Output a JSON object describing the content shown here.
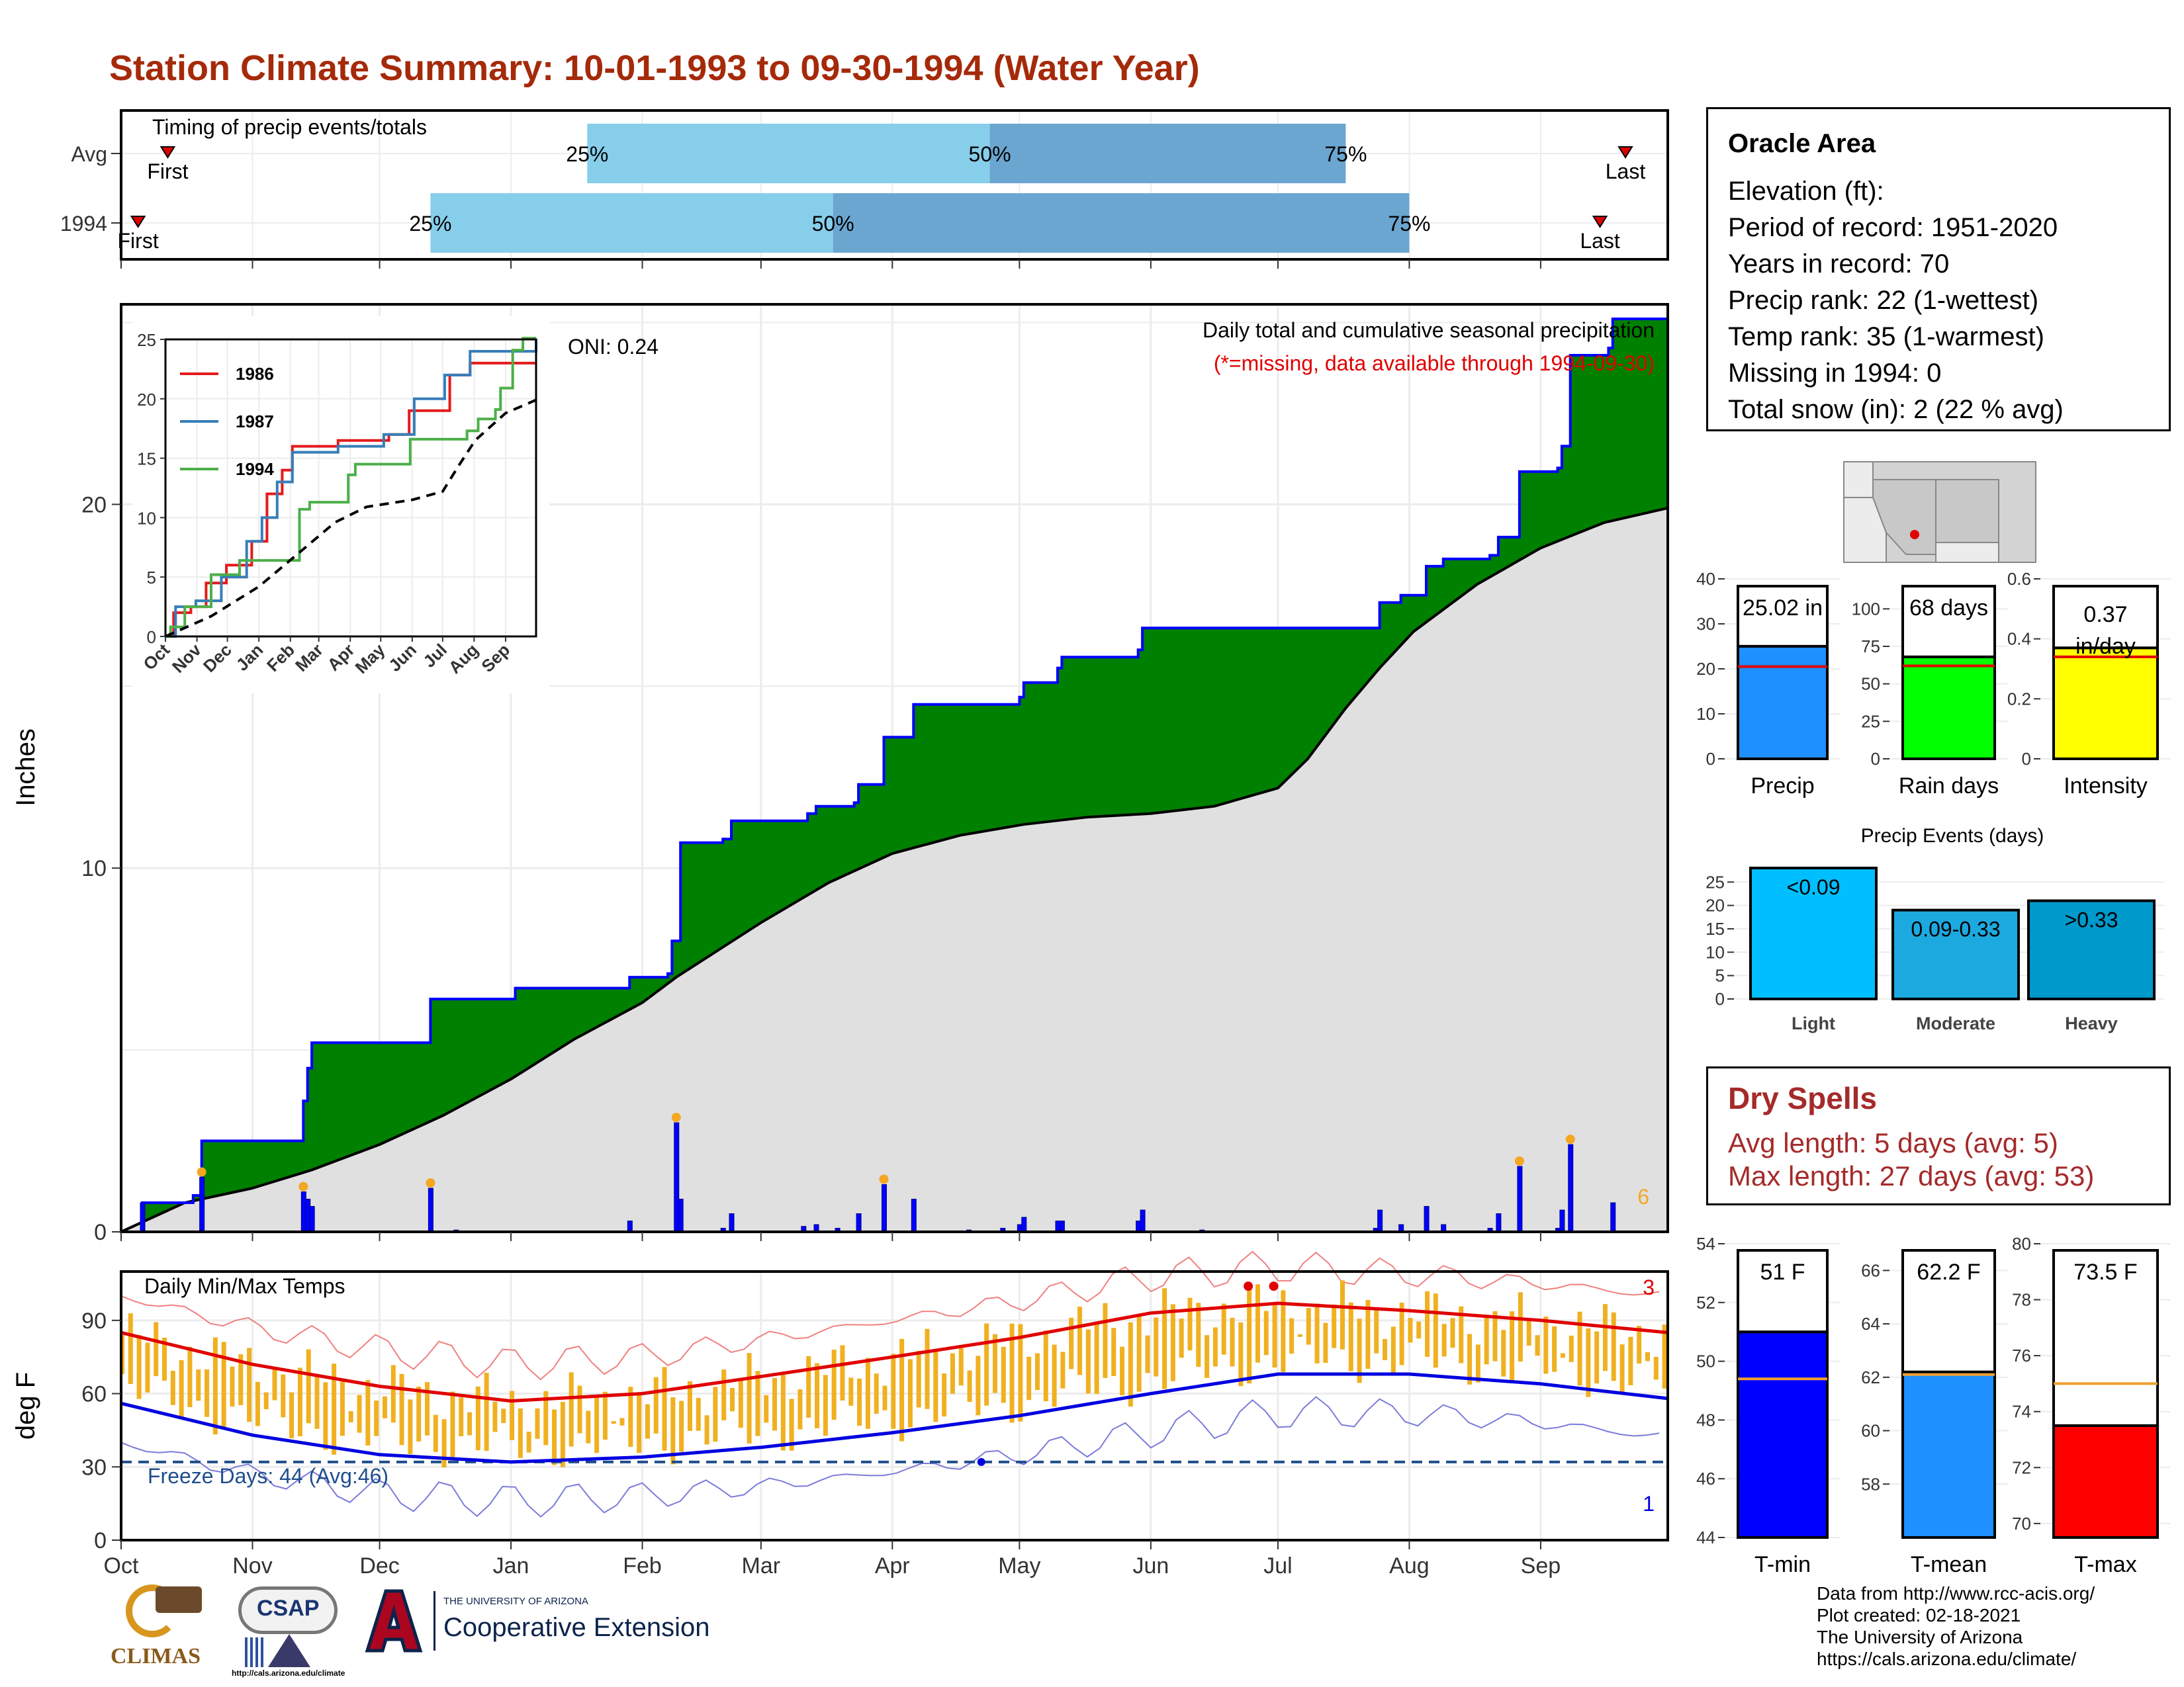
{
  "title": "Station Climate Summary: 10-01-1993 to 09-30-1994 (Water Year)",
  "timing_panel": {
    "label": "Timing of precip events/totals",
    "rows": [
      {
        "name": "Avg",
        "first_label": "First",
        "last_label": "Last",
        "first_day": 11,
        "last_day": 355,
        "p25_day": 110,
        "p50_day": 205,
        "p75_day": 289
      },
      {
        "name": "1994",
        "first_label": "First",
        "last_label": "Last",
        "first_day": 4,
        "last_day": 349,
        "p25_day": 73,
        "p50_day": 168,
        "p75_day": 304
      }
    ],
    "percent_labels": [
      "25%",
      "50%",
      "75%"
    ]
  },
  "main_panel": {
    "ylabel": "Inches",
    "y_ticks": [
      0,
      10,
      20
    ],
    "ylim": [
      0,
      25.5
    ],
    "label_top": "Daily total and cumulative seasonal precipitation",
    "label_missing": "(*=missing, data available through 1994-09-30)",
    "oni": "ONI: 0.24",
    "corner_count": "6"
  },
  "chart_data": [
    {
      "type": "area",
      "title": "Daily total and cumulative seasonal precipitation",
      "ylabel": "Inches",
      "ylim": [
        0,
        25.5
      ],
      "x_unit": "day of water year",
      "series": [
        {
          "name": "1994",
          "points": [
            [
              0,
              0
            ],
            [
              4,
              0
            ],
            [
              5,
              0.8
            ],
            [
              16,
              0.8
            ],
            [
              17,
              1.0
            ],
            [
              18,
              1.0
            ],
            [
              19,
              2.5
            ],
            [
              42,
              2.5
            ],
            [
              43,
              3.6
            ],
            [
              44,
              4.5
            ],
            [
              45,
              5.2
            ],
            [
              72,
              5.2
            ],
            [
              73,
              6.4
            ],
            [
              92,
              6.4
            ],
            [
              93,
              6.7
            ],
            [
              119,
              6.7
            ],
            [
              120,
              7.0
            ],
            [
              129,
              7.1
            ],
            [
              130,
              8.0
            ],
            [
              132,
              10.7
            ],
            [
              142,
              10.8
            ],
            [
              144,
              11.3
            ],
            [
              161,
              11.3
            ],
            [
              162,
              11.5
            ],
            [
              164,
              11.7
            ],
            [
              173,
              11.8
            ],
            [
              174,
              12.3
            ],
            [
              180,
              13.6
            ],
            [
              187,
              14.5
            ],
            [
              212,
              14.7
            ],
            [
              213,
              15.1
            ],
            [
              221,
              15.5
            ],
            [
              222,
              15.8
            ],
            [
              240,
              16.0
            ],
            [
              241,
              16.6
            ],
            [
              255,
              16.6
            ],
            [
              256,
              16.6
            ],
            [
              296,
              16.6
            ],
            [
              297,
              17.3
            ],
            [
              302,
              17.5
            ],
            [
              307,
              17.5
            ],
            [
              308,
              18.3
            ],
            [
              312,
              18.5
            ],
            [
              323,
              18.6
            ],
            [
              325,
              19.1
            ],
            [
              330,
              20.9
            ],
            [
              339,
              21.0
            ],
            [
              340,
              21.6
            ],
            [
              342,
              24.1
            ],
            [
              351,
              24.3
            ],
            [
              352,
              25.1
            ],
            [
              365,
              25.1
            ]
          ]
        },
        {
          "name": "Average cumulative",
          "points": [
            [
              0,
              0
            ],
            [
              15,
              0.8
            ],
            [
              31,
              1.2
            ],
            [
              45,
              1.7
            ],
            [
              61,
              2.4
            ],
            [
              76,
              3.2
            ],
            [
              92,
              4.2
            ],
            [
              107,
              5.3
            ],
            [
              123,
              6.3
            ],
            [
              131,
              7.0
            ],
            [
              151,
              8.5
            ],
            [
              167,
              9.6
            ],
            [
              182,
              10.4
            ],
            [
              198,
              10.9
            ],
            [
              213,
              11.2
            ],
            [
              228,
              11.4
            ],
            [
              243,
              11.5
            ],
            [
              258,
              11.7
            ],
            [
              273,
              12.2
            ],
            [
              280,
              13.0
            ],
            [
              289,
              14.4
            ],
            [
              297,
              15.5
            ],
            [
              305,
              16.5
            ],
            [
              320,
              17.8
            ],
            [
              335,
              18.8
            ],
            [
              350,
              19.5
            ],
            [
              365,
              19.9
            ]
          ]
        },
        {
          "name": "Daily precip",
          "points": [
            [
              5,
              0.8
            ],
            [
              19,
              1.5
            ],
            [
              43,
              1.1
            ],
            [
              44,
              0.9
            ],
            [
              45,
              0.7
            ],
            [
              73,
              1.2
            ],
            [
              79,
              0.05
            ],
            [
              120,
              0.3
            ],
            [
              131,
              3.0
            ],
            [
              132,
              0.9
            ],
            [
              142,
              0.1
            ],
            [
              144,
              0.5
            ],
            [
              161,
              0.15
            ],
            [
              164,
              0.2
            ],
            [
              169,
              0.1
            ],
            [
              174,
              0.5
            ],
            [
              180,
              1.3
            ],
            [
              187,
              0.9
            ],
            [
              200,
              0.05
            ],
            [
              208,
              0.1
            ],
            [
              212,
              0.2
            ],
            [
              213,
              0.4
            ],
            [
              221,
              0.3
            ],
            [
              222,
              0.3
            ],
            [
              240,
              0.3
            ],
            [
              241,
              0.6
            ],
            [
              255,
              0.05
            ],
            [
              296,
              0.1
            ],
            [
              297,
              0.6
            ],
            [
              302,
              0.2
            ],
            [
              308,
              0.7
            ],
            [
              312,
              0.2
            ],
            [
              323,
              0.1
            ],
            [
              325,
              0.5
            ],
            [
              330,
              1.8
            ],
            [
              339,
              0.1
            ],
            [
              340,
              0.6
            ],
            [
              342,
              2.4
            ],
            [
              352,
              0.8
            ]
          ]
        }
      ],
      "x_tick_labels": [
        "Oct",
        "Nov",
        "Dec",
        "Jan",
        "Feb",
        "Mar",
        "Apr",
        "May",
        "Jun",
        "Jul",
        "Aug",
        "Sep"
      ],
      "grid": true
    },
    {
      "type": "line",
      "title": "",
      "x_tick_labels": [
        "Oct",
        "Nov",
        "Dec",
        "Jan",
        "Feb",
        "Mar",
        "Apr",
        "May",
        "Jun",
        "Jul",
        "Aug",
        "Sep"
      ],
      "x_tick_days": [
        0,
        31,
        61,
        92,
        123,
        151,
        182,
        212,
        243,
        273,
        304,
        335
      ],
      "y_ticks": [
        0,
        5,
        10,
        15,
        20,
        25
      ],
      "ylim": [
        0,
        25
      ],
      "series": [
        {
          "name": "1986",
          "color": "#e41a1c",
          "points": [
            [
              0,
              0
            ],
            [
              8,
              2
            ],
            [
              25,
              2.5
            ],
            [
              40,
              4.5
            ],
            [
              60,
              6
            ],
            [
              85,
              8
            ],
            [
              100,
              12
            ],
            [
              115,
              14
            ],
            [
              125,
              16
            ],
            [
              170,
              16.5
            ],
            [
              220,
              17
            ],
            [
              240,
              19
            ],
            [
              280,
              22
            ],
            [
              300,
              23
            ],
            [
              365,
              23
            ]
          ]
        },
        {
          "name": "1987",
          "color": "#377eb8",
          "points": [
            [
              0,
              0
            ],
            [
              10,
              2.5
            ],
            [
              30,
              3
            ],
            [
              55,
              5
            ],
            [
              80,
              8
            ],
            [
              95,
              10
            ],
            [
              110,
              13
            ],
            [
              125,
              15.5
            ],
            [
              170,
              16
            ],
            [
              215,
              17
            ],
            [
              245,
              20
            ],
            [
              275,
              22
            ],
            [
              300,
              24
            ],
            [
              365,
              25
            ]
          ]
        },
        {
          "name": "1994",
          "color": "#4daf4a",
          "points": [
            [
              0,
              0
            ],
            [
              5,
              0.8
            ],
            [
              19,
              2.5
            ],
            [
              45,
              5.2
            ],
            [
              73,
              6.4
            ],
            [
              132,
              10.7
            ],
            [
              142,
              11.3
            ],
            [
              180,
              13.6
            ],
            [
              187,
              14.5
            ],
            [
              241,
              16.6
            ],
            [
              296,
              16.6
            ],
            [
              297,
              17.3
            ],
            [
              308,
              18.3
            ],
            [
              325,
              19.1
            ],
            [
              330,
              20.9
            ],
            [
              342,
              24.1
            ],
            [
              352,
              25.1
            ],
            [
              365,
              25.1
            ]
          ]
        },
        {
          "name": "avg",
          "color": "#000000",
          "points": [
            [
              0,
              0
            ],
            [
              45,
              1.7
            ],
            [
              92,
              4.2
            ],
            [
              131,
              7.0
            ],
            [
              167,
              9.6
            ],
            [
              198,
              10.9
            ],
            [
              243,
              11.5
            ],
            [
              273,
              12.2
            ],
            [
              289,
              14.4
            ],
            [
              305,
              16.5
            ],
            [
              335,
              18.8
            ],
            [
              365,
              19.9
            ]
          ]
        }
      ]
    },
    {
      "type": "bar",
      "title": "",
      "categories": [
        "Precip",
        "Rain days",
        "Intensity"
      ],
      "values": [
        25.02,
        68,
        0.37
      ],
      "avg": [
        20.5,
        62,
        0.34
      ],
      "labels": [
        "25.02 in",
        "68 days",
        "0.37 in/day"
      ],
      "ylims": [
        [
          0,
          40
        ],
        [
          0,
          120
        ],
        [
          0,
          0.6
        ]
      ],
      "colors": [
        "#1e90ff",
        "#00ff00",
        "#ffff00"
      ]
    },
    {
      "type": "bar",
      "title": "Precip Events (days)",
      "categories": [
        "Light",
        "Moderate",
        "Heavy"
      ],
      "values": [
        28,
        19,
        21
      ],
      "bar_labels": [
        "<0.09",
        "0.09-0.33",
        ">0.33"
      ],
      "ylim": [
        0,
        29
      ],
      "colors": [
        "#00bfff",
        "#1ca9e0",
        "#0099cc"
      ]
    },
    {
      "type": "line",
      "title": "Daily Min/Max Temps",
      "ylabel": "deg F",
      "ylim": [
        0,
        110
      ],
      "y_ticks": [
        0,
        30,
        60,
        90
      ],
      "freeze_label": "Freeze Days: 44 (Avg:46)",
      "corner_top": "3",
      "corner_bottom": "1",
      "x_tick_labels": [
        "Oct",
        "Nov",
        "Dec",
        "Jan",
        "Feb",
        "Mar",
        "Apr",
        "May",
        "Jun",
        "Jul",
        "Aug",
        "Sep"
      ],
      "avg_max_points": [
        [
          0,
          88
        ],
        [
          31,
          75
        ],
        [
          61,
          66
        ],
        [
          92,
          60
        ],
        [
          123,
          63
        ],
        [
          151,
          70
        ],
        [
          182,
          78
        ],
        [
          212,
          86
        ],
        [
          243,
          96
        ],
        [
          273,
          100
        ],
        [
          304,
          97
        ],
        [
          335,
          93
        ],
        [
          365,
          88
        ]
      ],
      "avg_min_points": [
        [
          0,
          56
        ],
        [
          31,
          43
        ],
        [
          61,
          35
        ],
        [
          92,
          32
        ],
        [
          123,
          34
        ],
        [
          151,
          38
        ],
        [
          182,
          44
        ],
        [
          212,
          51
        ],
        [
          243,
          60
        ],
        [
          273,
          68
        ],
        [
          304,
          68
        ],
        [
          335,
          64
        ],
        [
          365,
          58
        ]
      ]
    },
    {
      "type": "bar",
      "title": "",
      "categories": [
        "T-min",
        "T-mean",
        "T-max"
      ],
      "values": [
        51,
        62.2,
        73.5
      ],
      "avg": [
        49.4,
        62.1,
        75.0
      ],
      "labels": [
        "51 F",
        "62.2 F",
        "73.5 F"
      ],
      "ylims": [
        [
          44,
          54
        ],
        [
          56,
          67
        ],
        [
          69.5,
          80
        ]
      ],
      "y_ticks": [
        [
          44,
          46,
          48,
          50,
          52,
          54
        ],
        [
          58,
          60,
          62,
          64,
          66
        ],
        [
          70,
          72,
          74,
          76,
          78,
          80
        ]
      ],
      "colors": [
        "#0000ff",
        "#1e90ff",
        "#ff0000"
      ]
    }
  ],
  "inset": {
    "legend": [
      "1986",
      "1987",
      "1994"
    ],
    "x_labels": [
      "Oct",
      "Nov",
      "Dec",
      "Jan",
      "Feb",
      "Mar",
      "Apr",
      "May",
      "Jun",
      "Jul",
      "Aug",
      "Sep"
    ]
  },
  "info": {
    "name": "Oracle Area",
    "lines": [
      "Elevation (ft):",
      "Period of record: 1951-2020",
      "Years in record: 70",
      "Precip rank: 22 (1-wettest)",
      "Temp rank: 35 (1-warmest)",
      "Missing in 1994: 0",
      "Total snow (in): 2 (22 % avg)"
    ]
  },
  "dry_spells": {
    "title": "Dry Spells",
    "avg_length": "Avg length: 5 days (avg: 5)",
    "max_length": "Max length: 27 days (avg: 53)"
  },
  "small_bars": {
    "precip_labels": [
      "Precip",
      "Rain days",
      "Intensity"
    ],
    "events_title": "Precip Events (days)",
    "temp_labels": [
      "T-min",
      "T-mean",
      "T-max"
    ]
  },
  "temp_panel": {
    "title": "Daily Min/Max Temps",
    "ylabel": "deg F"
  },
  "footer": {
    "lines": [
      "Data from http://www.rcc-acis.org/",
      "Plot created: 02-18-2021",
      "The University of Arizona",
      "https://cals.arizona.edu/climate/"
    ]
  },
  "logos": {
    "climas": "CLIMAS",
    "csap": "CSAP",
    "csap_url": "http://cals.arizona.edu/climate",
    "ua_small": "THE UNIVERSITY OF ARIZONA",
    "ua_big": "Cooperative Extension"
  },
  "colors": {
    "title": "#a52a0a",
    "green": "#008000",
    "blue_line": "#0000ff",
    "gray_area": "#e0e0e0",
    "orange": "#f0b020",
    "dry": "#a52a2a"
  }
}
